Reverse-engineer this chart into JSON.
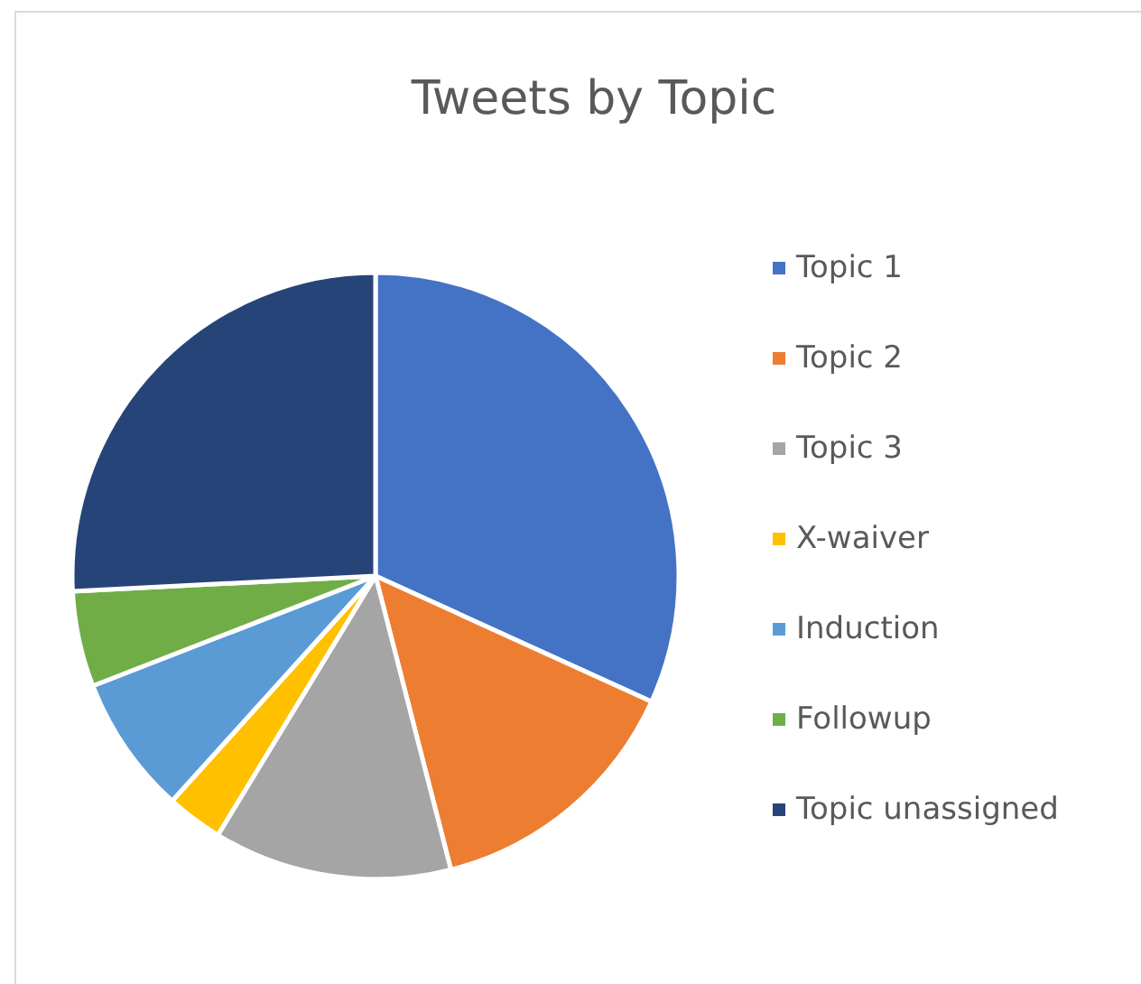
{
  "chart_data": {
    "type": "pie",
    "title": "Tweets by Topic",
    "categories": [
      "Topic 1",
      "Topic 2",
      "Topic 3",
      "X-waiver",
      "Induction",
      "Followup",
      "Topic unassigned"
    ],
    "values": [
      31.8,
      14.2,
      12.7,
      3.0,
      7.4,
      5.1,
      25.8
    ],
    "colors": [
      "#4472c4",
      "#ed7d31",
      "#a5a5a5",
      "#ffc000",
      "#5b9bd5",
      "#70ad47",
      "#264478"
    ],
    "legend": "right"
  }
}
